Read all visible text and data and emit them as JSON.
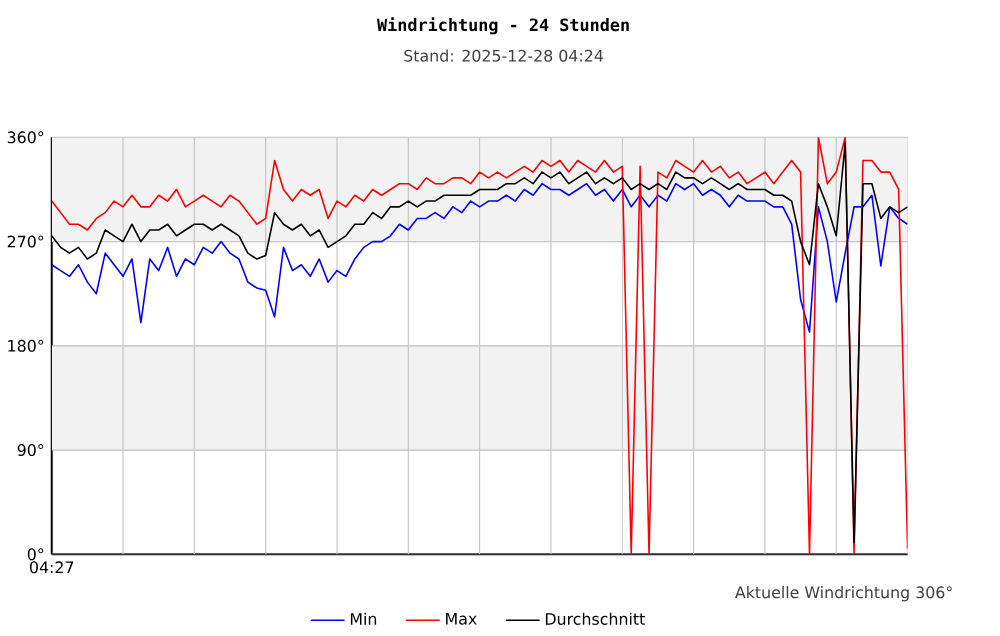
{
  "chart_data": {
    "type": "line",
    "title": "Windrichtung - 24 Stunden",
    "subtitle": "Stand: 2025-12-28 04:24",
    "annotations": [
      "Aktuelle Windrichtung 306°"
    ],
    "categories": [
      "04:27",
      null,
      null,
      null,
      null,
      null,
      null,
      null,
      null,
      null,
      null,
      null,
      null,
      null,
      null,
      null,
      null,
      null,
      null,
      null,
      null,
      null,
      null,
      null,
      null,
      null,
      null,
      null,
      null,
      null,
      null,
      null,
      null,
      null,
      null,
      null,
      null,
      null,
      null,
      null,
      null,
      null,
      null,
      null,
      null,
      null,
      null,
      null,
      null,
      null,
      null,
      null,
      null,
      null,
      null,
      null,
      null,
      null,
      null,
      null,
      null,
      null,
      null,
      null,
      null,
      null,
      null,
      null,
      null,
      null,
      null,
      null,
      null,
      null,
      null,
      null,
      null,
      null,
      null,
      null,
      null,
      null,
      null,
      null,
      null,
      null,
      null,
      null,
      null,
      null,
      null,
      null,
      null,
      null,
      null,
      null,
      null
    ],
    "series": [
      {
        "name": "Min",
        "color": "#0000ff",
        "values": [
          250,
          245,
          240,
          250,
          235,
          225,
          260,
          250,
          240,
          255,
          200,
          255,
          245,
          265,
          240,
          255,
          250,
          265,
          260,
          270,
          260,
          255,
          235,
          230,
          228,
          205,
          265,
          245,
          250,
          240,
          255,
          235,
          245,
          240,
          255,
          265,
          270,
          270,
          275,
          285,
          280,
          290,
          290,
          295,
          290,
          300,
          295,
          305,
          300,
          305,
          305,
          310,
          305,
          315,
          310,
          320,
          315,
          315,
          310,
          315,
          320,
          310,
          315,
          305,
          315,
          300,
          310,
          300,
          310,
          305,
          320,
          315,
          320,
          310,
          315,
          310,
          300,
          310,
          305,
          305,
          305,
          300,
          300,
          285,
          220,
          192,
          300,
          270,
          218,
          260,
          300,
          300,
          310,
          249,
          300,
          290,
          285
        ]
      },
      {
        "name": "Max",
        "color": "#ff0000",
        "values": [
          305,
          295,
          285,
          285,
          280,
          290,
          295,
          305,
          300,
          310,
          300,
          300,
          310,
          305,
          315,
          300,
          305,
          310,
          305,
          300,
          310,
          305,
          295,
          285,
          290,
          340,
          315,
          305,
          315,
          310,
          315,
          290,
          305,
          300,
          310,
          305,
          315,
          310,
          315,
          320,
          320,
          315,
          325,
          320,
          320,
          325,
          325,
          320,
          330,
          325,
          330,
          325,
          330,
          335,
          330,
          340,
          335,
          340,
          330,
          340,
          335,
          330,
          340,
          330,
          335,
          0,
          335,
          0,
          330,
          325,
          340,
          335,
          330,
          340,
          330,
          335,
          325,
          330,
          320,
          325,
          330,
          320,
          330,
          340,
          330,
          0,
          360,
          320,
          330,
          360,
          0,
          340,
          340,
          330,
          330,
          315,
          5
        ]
      },
      {
        "name": "Durchschnitt",
        "color": "#000000",
        "values": [
          275,
          265,
          260,
          265,
          255,
          260,
          280,
          275,
          270,
          285,
          270,
          280,
          280,
          285,
          275,
          280,
          285,
          285,
          280,
          285,
          280,
          275,
          260,
          255,
          258,
          295,
          285,
          280,
          285,
          275,
          280,
          265,
          270,
          275,
          285,
          285,
          295,
          290,
          300,
          300,
          305,
          300,
          305,
          305,
          310,
          310,
          310,
          310,
          315,
          315,
          315,
          320,
          320,
          325,
          320,
          330,
          325,
          330,
          320,
          325,
          330,
          320,
          325,
          320,
          325,
          315,
          320,
          315,
          320,
          315,
          330,
          325,
          325,
          320,
          325,
          320,
          315,
          320,
          315,
          315,
          315,
          310,
          310,
          305,
          270,
          250,
          320,
          300,
          275,
          355,
          10,
          320,
          320,
          290,
          300,
          295,
          300
        ]
      }
    ],
    "ylim": [
      0,
      360
    ],
    "yticks": [
      {
        "value": 0,
        "label": "0°"
      },
      {
        "value": 90,
        "label": "90°"
      },
      {
        "value": 180,
        "label": "180°"
      },
      {
        "value": 270,
        "label": "270°"
      },
      {
        "value": 360,
        "label": "360°"
      }
    ],
    "bands": [
      {
        "axis": "y",
        "from": 270,
        "to": 360,
        "color": "#f2f2f2"
      },
      {
        "axis": "y",
        "from": 90,
        "to": 180,
        "color": "#f2f2f2"
      }
    ],
    "grid": true,
    "legend": "bottom",
    "line_style": "solid",
    "marker": "none"
  }
}
